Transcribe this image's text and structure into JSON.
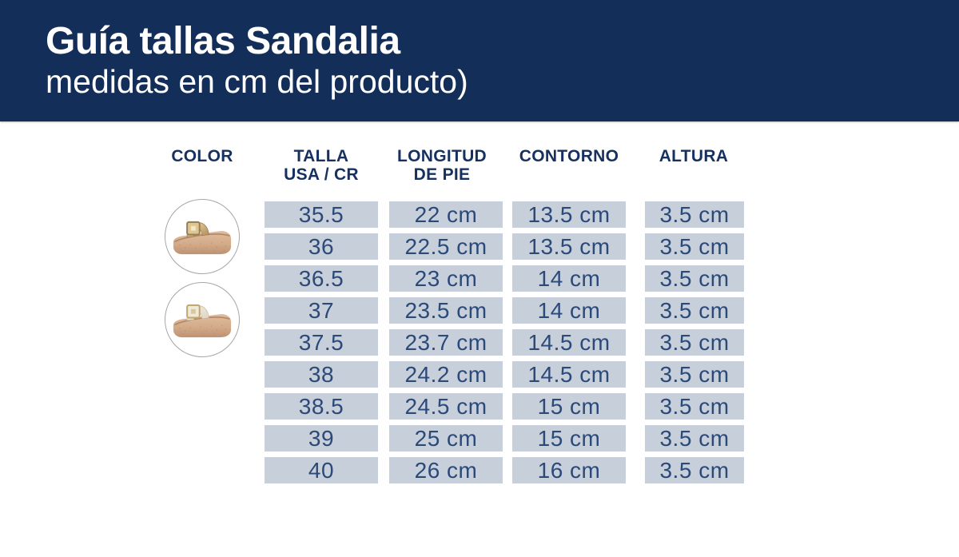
{
  "header": {
    "title": "Guía tallas Sandalia",
    "subtitle": "medidas en cm del producto)"
  },
  "table": {
    "columns": [
      {
        "id": "color",
        "label": "COLOR",
        "label2": ""
      },
      {
        "id": "talla",
        "label": "TALLA",
        "label2": "USA / CR"
      },
      {
        "id": "longitud",
        "label": "LONGITUD",
        "label2": "DE PIE"
      },
      {
        "id": "contorno",
        "label": "CONTORNO",
        "label2": ""
      },
      {
        "id": "altura",
        "label": "ALTURA",
        "label2": ""
      }
    ],
    "rows": [
      {
        "talla": "35.5",
        "longitud": "22 cm",
        "contorno": "13.5 cm",
        "altura": "3.5 cm"
      },
      {
        "talla": "36",
        "longitud": "22.5 cm",
        "contorno": "13.5 cm",
        "altura": "3.5 cm"
      },
      {
        "talla": "36.5",
        "longitud": "23 cm",
        "contorno": "14 cm",
        "altura": "3.5 cm"
      },
      {
        "talla": "37",
        "longitud": "23.5 cm",
        "contorno": "14 cm",
        "altura": "3.5 cm"
      },
      {
        "talla": "37.5",
        "longitud": "23.7 cm",
        "contorno": "14.5 cm",
        "altura": "3.5 cm"
      },
      {
        "talla": "38",
        "longitud": "24.2 cm",
        "contorno": "14.5 cm",
        "altura": "3.5 cm"
      },
      {
        "talla": "38.5",
        "longitud": "24.5 cm",
        "contorno": "15 cm",
        "altura": "3.5 cm"
      },
      {
        "talla": "39",
        "longitud": "25 cm",
        "contorno": "15 cm",
        "altura": "3.5 cm"
      },
      {
        "talla": "40",
        "longitud": "26 cm",
        "contorno": "16 cm",
        "altura": "3.5 cm"
      }
    ]
  },
  "products": [
    {
      "icon": "gold-platform-sandal-photo"
    },
    {
      "icon": "cream-platform-sandal-photo"
    }
  ],
  "colors": {
    "banner_bg": "#142e5a",
    "banner_text": "#ffffff",
    "heading_text": "#16315f",
    "cell_bg": "#c6cfda",
    "cell_text": "#2b4979",
    "strap_gold": "#dcc291",
    "strap_cream": "#efe9dc",
    "sole_tan": "#d7b192"
  },
  "chart_data": {
    "type": "table",
    "title": "Guía tallas Sandalia (medidas en cm del producto)",
    "columns": [
      "TALLA USA / CR",
      "LONGITUD DE PIE",
      "CONTORNO",
      "ALTURA"
    ],
    "rows": [
      [
        "35.5",
        "22 cm",
        "13.5 cm",
        "3.5 cm"
      ],
      [
        "36",
        "22.5 cm",
        "13.5 cm",
        "3.5 cm"
      ],
      [
        "36.5",
        "23 cm",
        "14 cm",
        "3.5 cm"
      ],
      [
        "37",
        "23.5 cm",
        "14 cm",
        "3.5 cm"
      ],
      [
        "37.5",
        "23.7 cm",
        "14.5 cm",
        "3.5 cm"
      ],
      [
        "38",
        "24.2 cm",
        "14.5 cm",
        "3.5 cm"
      ],
      [
        "38.5",
        "24.5 cm",
        "15 cm",
        "3.5 cm"
      ],
      [
        "39",
        "25 cm",
        "15 cm",
        "3.5 cm"
      ],
      [
        "40",
        "26 cm",
        "16 cm",
        "3.5 cm"
      ]
    ]
  }
}
